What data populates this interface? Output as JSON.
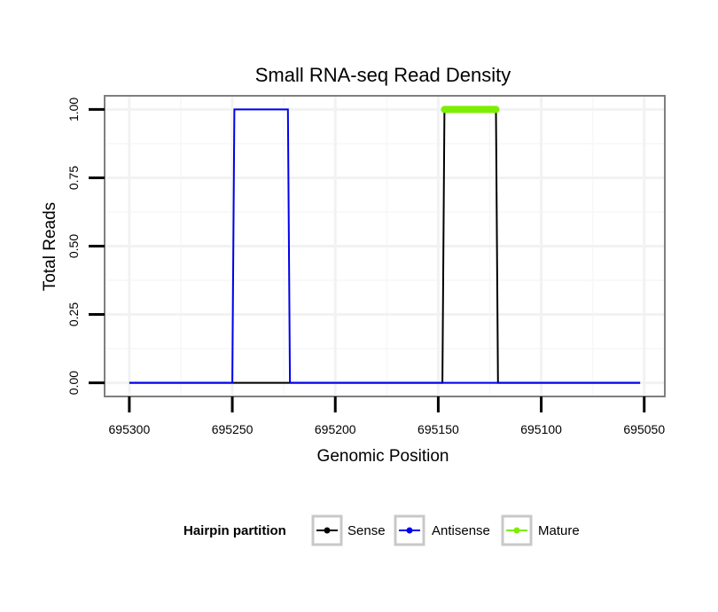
{
  "chart_data": {
    "type": "line",
    "title": "Small RNA-seq Read Density",
    "xlabel": "Genomic Position",
    "ylabel": "Total Reads",
    "x_reversed": true,
    "xlim": [
      695312,
      695040
    ],
    "ylim": [
      -0.05,
      1.05
    ],
    "x_ticks": [
      695300,
      695250,
      695200,
      695150,
      695100,
      695050
    ],
    "x_tick_labels": [
      "695300",
      "695250",
      "695200",
      "695150",
      "695100",
      "695050"
    ],
    "y_ticks": [
      0,
      0.25,
      0.5,
      0.75,
      1.0
    ],
    "y_tick_labels": [
      "0.00",
      "0.25",
      "0.50",
      "0.75",
      "1.00"
    ],
    "grid": true,
    "series": [
      {
        "name": "Sense",
        "color": "#000000",
        "x": [
          695300,
          695148,
          695147,
          695122,
          695121,
          695052
        ],
        "y": [
          0,
          0,
          1,
          1,
          0,
          0
        ]
      },
      {
        "name": "Antisense",
        "color": "#0000ee",
        "x": [
          695300,
          695250,
          695249,
          695223,
          695222,
          695148,
          695147,
          695122,
          695121,
          695052
        ],
        "y": [
          0,
          0,
          1,
          1,
          0,
          0,
          0,
          0,
          0,
          0
        ]
      },
      {
        "name": "Mature",
        "color": "#7cee00",
        "x": [
          695147,
          695122
        ],
        "y": [
          1,
          1
        ]
      }
    ],
    "legend": {
      "title": "Hairpin partition",
      "position": "bottom",
      "entries": [
        "Sense",
        "Antisense",
        "Mature"
      ]
    }
  }
}
